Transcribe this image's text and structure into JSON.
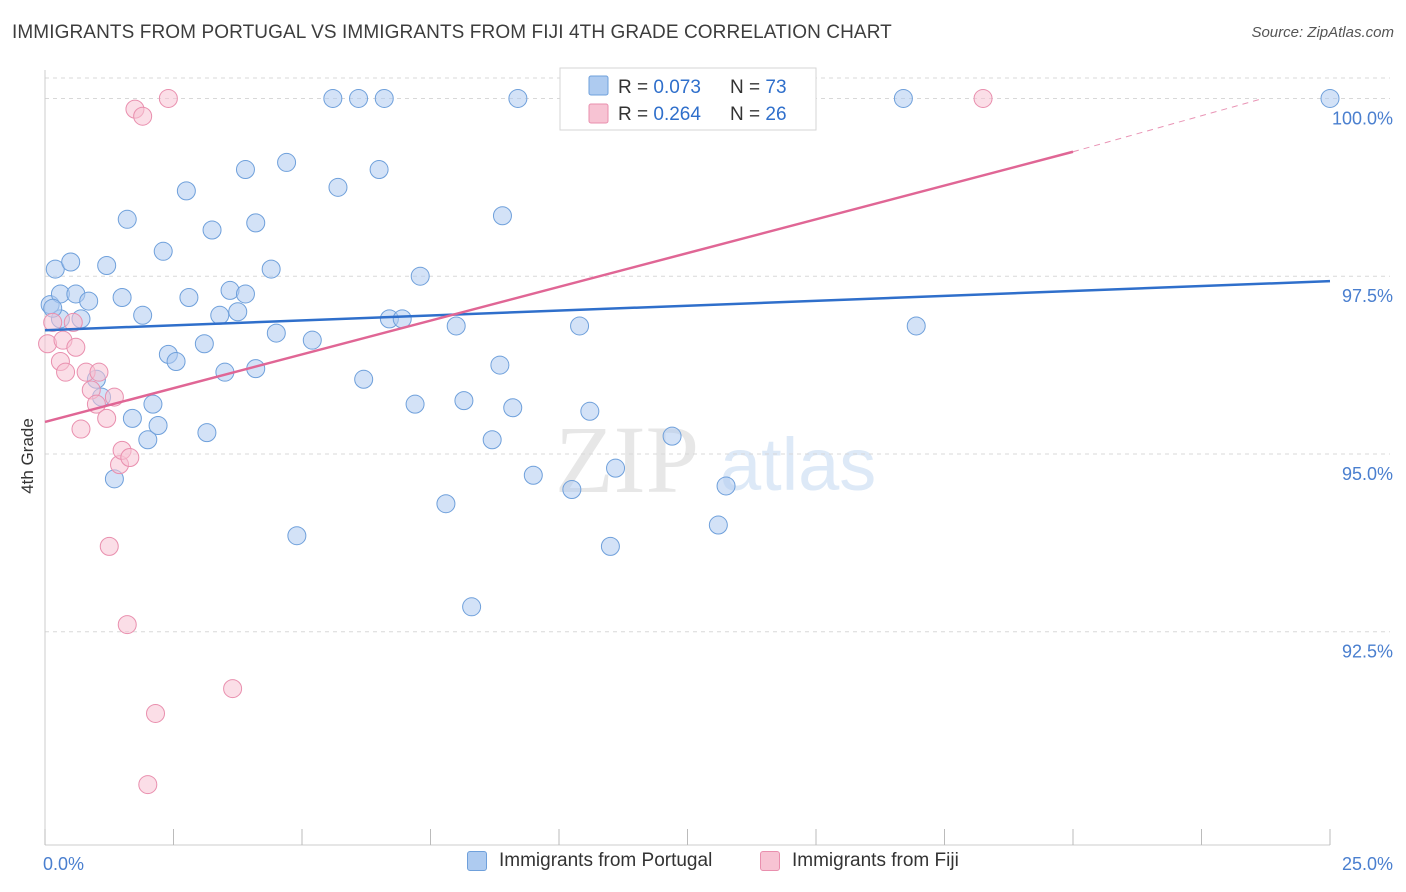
{
  "header": {
    "title": "IMMIGRANTS FROM PORTUGAL VS IMMIGRANTS FROM FIJI 4TH GRADE CORRELATION CHART",
    "source": "Source: ZipAtlas.com"
  },
  "watermark": {
    "zip": "ZIP",
    "atlas": "atlas"
  },
  "colors": {
    "blue_fill": "#aecbf0",
    "blue_stroke": "#6fa0db",
    "blue_line": "#2f6fcb",
    "pink_fill": "#f7c3d3",
    "pink_stroke": "#e98fae",
    "pink_line": "#e06695",
    "tick_label": "#4a7fcf",
    "grid": "#d8d8d8"
  },
  "legend_top": {
    "rows": [
      {
        "r_label": "R = ",
        "r_value": "0.073",
        "n_label": "N = ",
        "n_value": "73"
      },
      {
        "r_label": "R = ",
        "r_value": "0.264",
        "n_label": "N = ",
        "n_value": "26"
      }
    ]
  },
  "legend_bottom": {
    "items": [
      "Immigrants from Portugal",
      "Immigrants from Fiji"
    ]
  },
  "chart_data": {
    "type": "scatter",
    "title": "IMMIGRANTS FROM PORTUGAL VS IMMIGRANTS FROM FIJI 4TH GRADE CORRELATION CHART",
    "xlabel": "",
    "ylabel": "4th Grade",
    "xlim": [
      0,
      25
    ],
    "ylim": [
      89.5,
      100.4
    ],
    "x_tick_labels": [
      "0.0%",
      "25.0%"
    ],
    "y_ticks": [
      92.5,
      95.0,
      97.5,
      100.0
    ],
    "y_tick_labels": [
      "92.5%",
      "95.0%",
      "97.5%",
      "100.0%"
    ],
    "grid": "horizontal dashed",
    "legend_placement": "top-center and bottom",
    "series": [
      {
        "name": "Immigrants from Portugal",
        "r": 0.073,
        "n": 73,
        "trend": {
          "x": [
            0,
            25
          ],
          "y": [
            96.74,
            97.43
          ]
        },
        "points": [
          [
            0.1,
            97.1
          ],
          [
            0.2,
            97.6
          ],
          [
            0.3,
            96.9
          ],
          [
            0.3,
            97.25
          ],
          [
            0.5,
            97.7
          ],
          [
            0.6,
            97.25
          ],
          [
            0.7,
            96.9
          ],
          [
            0.85,
            97.15
          ],
          [
            1.0,
            96.05
          ],
          [
            1.1,
            95.8
          ],
          [
            1.2,
            97.65
          ],
          [
            1.35,
            94.65
          ],
          [
            1.5,
            97.2
          ],
          [
            1.6,
            98.3
          ],
          [
            1.7,
            95.5
          ],
          [
            1.9,
            96.95
          ],
          [
            2.0,
            95.2
          ],
          [
            2.1,
            95.7
          ],
          [
            2.2,
            95.4
          ],
          [
            2.3,
            97.85
          ],
          [
            2.4,
            96.4
          ],
          [
            2.55,
            96.3
          ],
          [
            2.75,
            98.7
          ],
          [
            2.8,
            97.2
          ],
          [
            3.1,
            96.55
          ],
          [
            3.15,
            95.3
          ],
          [
            3.25,
            98.15
          ],
          [
            3.4,
            96.95
          ],
          [
            3.5,
            96.15
          ],
          [
            3.6,
            97.3
          ],
          [
            3.75,
            97.0
          ],
          [
            3.9,
            97.25
          ],
          [
            3.9,
            99.0
          ],
          [
            4.1,
            96.2
          ],
          [
            4.1,
            98.25
          ],
          [
            4.4,
            97.6
          ],
          [
            4.5,
            96.7
          ],
          [
            4.7,
            99.1
          ],
          [
            4.9,
            93.85
          ],
          [
            5.2,
            96.6
          ],
          [
            5.6,
            100.0
          ],
          [
            5.7,
            98.75
          ],
          [
            6.1,
            100.0
          ],
          [
            6.2,
            96.05
          ],
          [
            6.5,
            99.0
          ],
          [
            6.6,
            100.0
          ],
          [
            6.7,
            96.9
          ],
          [
            6.95,
            96.9
          ],
          [
            7.2,
            95.7
          ],
          [
            7.3,
            97.5
          ],
          [
            7.8,
            94.3
          ],
          [
            8.0,
            96.8
          ],
          [
            8.15,
            95.75
          ],
          [
            8.3,
            92.85
          ],
          [
            8.7,
            95.2
          ],
          [
            8.85,
            96.25
          ],
          [
            8.9,
            98.35
          ],
          [
            9.1,
            95.65
          ],
          [
            9.2,
            100.0
          ],
          [
            9.5,
            94.7
          ],
          [
            10.25,
            94.5
          ],
          [
            10.4,
            96.8
          ],
          [
            10.6,
            95.6
          ],
          [
            11.0,
            93.7
          ],
          [
            11.1,
            94.8
          ],
          [
            12.2,
            95.25
          ],
          [
            13.1,
            94.0
          ],
          [
            13.25,
            94.55
          ],
          [
            14.0,
            100.0
          ],
          [
            16.7,
            100.0
          ],
          [
            16.95,
            96.8
          ],
          [
            25.0,
            100.0
          ],
          [
            0.15,
            97.05
          ]
        ]
      },
      {
        "name": "Immigrants from Fiji",
        "r": 0.264,
        "n": 26,
        "trend": {
          "x": [
            0,
            20
          ],
          "y": [
            95.45,
            99.25
          ],
          "dashed_extension": {
            "x": [
              20,
              23.7
            ],
            "y": [
              99.25,
              100.0
            ]
          }
        },
        "points": [
          [
            0.05,
            96.55
          ],
          [
            0.15,
            96.85
          ],
          [
            0.3,
            96.3
          ],
          [
            0.35,
            96.6
          ],
          [
            0.4,
            96.15
          ],
          [
            0.55,
            96.85
          ],
          [
            0.6,
            96.5
          ],
          [
            0.7,
            95.35
          ],
          [
            0.8,
            96.15
          ],
          [
            0.9,
            95.9
          ],
          [
            1.0,
            95.7
          ],
          [
            1.05,
            96.15
          ],
          [
            1.2,
            95.5
          ],
          [
            1.25,
            93.7
          ],
          [
            1.35,
            95.8
          ],
          [
            1.45,
            94.85
          ],
          [
            1.5,
            95.05
          ],
          [
            1.6,
            92.6
          ],
          [
            1.65,
            94.95
          ],
          [
            1.75,
            99.85
          ],
          [
            1.9,
            99.75
          ],
          [
            2.0,
            90.35
          ],
          [
            2.15,
            91.35
          ],
          [
            2.4,
            100.0
          ],
          [
            3.65,
            91.7
          ],
          [
            18.25,
            100.0
          ]
        ]
      }
    ]
  }
}
